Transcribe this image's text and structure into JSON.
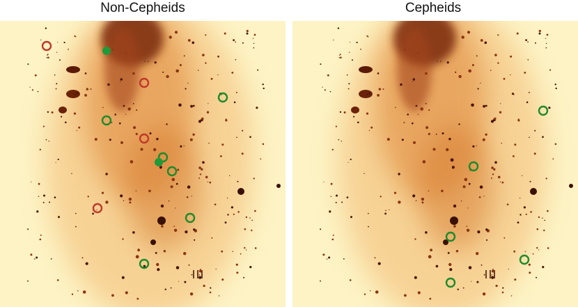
{
  "panels": [
    {
      "title": "Non-Cepheids"
    },
    {
      "title": "Cepheids"
    }
  ]
}
